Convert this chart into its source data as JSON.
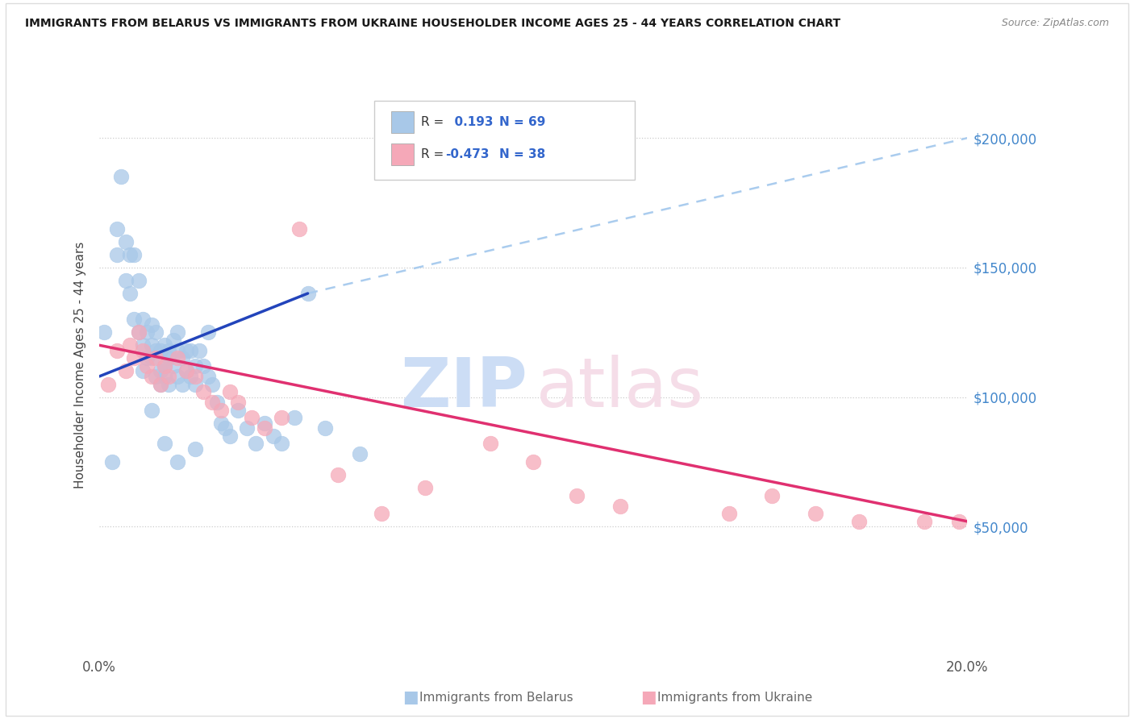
{
  "title": "IMMIGRANTS FROM BELARUS VS IMMIGRANTS FROM UKRAINE HOUSEHOLDER INCOME AGES 25 - 44 YEARS CORRELATION CHART",
  "source": "Source: ZipAtlas.com",
  "ylabel": "Householder Income Ages 25 - 44 years",
  "x_min": 0.0,
  "x_max": 0.2,
  "y_min": 0,
  "y_max": 225000,
  "y_ticks": [
    50000,
    100000,
    150000,
    200000
  ],
  "y_tick_labels": [
    "$50,000",
    "$100,000",
    "$150,000",
    "$200,000"
  ],
  "belarus_color": "#a8c8e8",
  "ukraine_color": "#f5a8b8",
  "belarus_line_color": "#2244bb",
  "ukraine_line_color": "#e03070",
  "dashed_color": "#aaccee",
  "R_belarus": 0.193,
  "N_belarus": 69,
  "R_ukraine": -0.473,
  "N_ukraine": 38,
  "belarus_line_x0": 0.0,
  "belarus_line_y0": 108000,
  "belarus_line_x1": 0.048,
  "belarus_line_y1": 140000,
  "dashed_line_x0": 0.048,
  "dashed_line_y0": 140000,
  "dashed_line_x1": 0.2,
  "dashed_line_y1": 200000,
  "ukraine_line_x0": 0.0,
  "ukraine_line_y0": 120000,
  "ukraine_line_x1": 0.2,
  "ukraine_line_y1": 52000,
  "belarus_scatter_x": [
    0.001,
    0.003,
    0.004,
    0.004,
    0.005,
    0.006,
    0.006,
    0.007,
    0.007,
    0.008,
    0.008,
    0.009,
    0.009,
    0.01,
    0.01,
    0.01,
    0.011,
    0.011,
    0.012,
    0.012,
    0.012,
    0.013,
    0.013,
    0.013,
    0.014,
    0.014,
    0.014,
    0.015,
    0.015,
    0.015,
    0.016,
    0.016,
    0.016,
    0.017,
    0.017,
    0.018,
    0.018,
    0.018,
    0.019,
    0.019,
    0.02,
    0.02,
    0.021,
    0.021,
    0.022,
    0.022,
    0.023,
    0.024,
    0.025,
    0.025,
    0.026,
    0.027,
    0.028,
    0.029,
    0.03,
    0.032,
    0.034,
    0.036,
    0.038,
    0.04,
    0.042,
    0.045,
    0.048,
    0.052,
    0.06,
    0.012,
    0.015,
    0.018,
    0.022
  ],
  "belarus_scatter_y": [
    125000,
    75000,
    165000,
    155000,
    185000,
    160000,
    145000,
    155000,
    140000,
    155000,
    130000,
    145000,
    125000,
    130000,
    120000,
    110000,
    125000,
    115000,
    120000,
    128000,
    115000,
    118000,
    108000,
    125000,
    118000,
    110000,
    105000,
    112000,
    120000,
    108000,
    115000,
    105000,
    118000,
    112000,
    122000,
    108000,
    118000,
    125000,
    115000,
    105000,
    110000,
    118000,
    108000,
    118000,
    112000,
    105000,
    118000,
    112000,
    125000,
    108000,
    105000,
    98000,
    90000,
    88000,
    85000,
    95000,
    88000,
    82000,
    90000,
    85000,
    82000,
    92000,
    140000,
    88000,
    78000,
    95000,
    82000,
    75000,
    80000
  ],
  "ukraine_scatter_x": [
    0.002,
    0.004,
    0.006,
    0.007,
    0.008,
    0.009,
    0.01,
    0.011,
    0.012,
    0.013,
    0.014,
    0.015,
    0.016,
    0.018,
    0.02,
    0.022,
    0.024,
    0.026,
    0.028,
    0.03,
    0.032,
    0.035,
    0.038,
    0.042,
    0.046,
    0.055,
    0.065,
    0.075,
    0.09,
    0.1,
    0.11,
    0.12,
    0.145,
    0.155,
    0.165,
    0.175,
    0.19,
    0.198
  ],
  "ukraine_scatter_y": [
    105000,
    118000,
    110000,
    120000,
    115000,
    125000,
    118000,
    112000,
    108000,
    115000,
    105000,
    112000,
    108000,
    115000,
    110000,
    108000,
    102000,
    98000,
    95000,
    102000,
    98000,
    92000,
    88000,
    92000,
    165000,
    70000,
    55000,
    65000,
    82000,
    75000,
    62000,
    58000,
    55000,
    62000,
    55000,
    52000,
    52000,
    52000
  ]
}
